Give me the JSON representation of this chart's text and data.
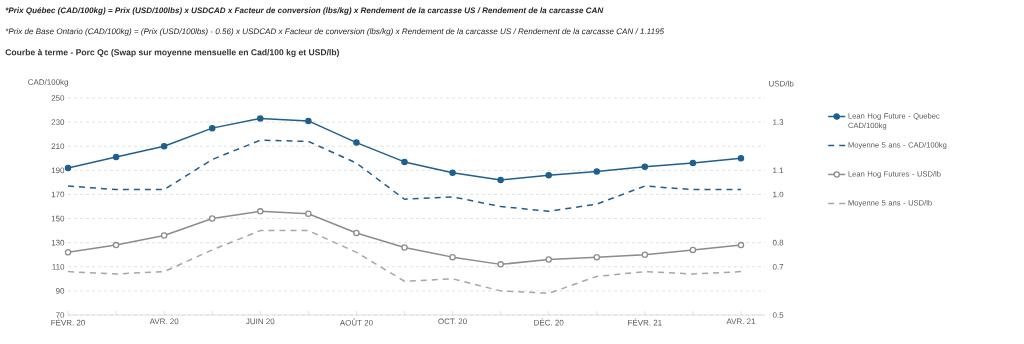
{
  "chart_data": {
    "type": "line",
    "title": "Courbe à terme - Porc Qc (Swap sur moyenne mensuelle en Cad/100 kg et USD/lb)",
    "annotations": [
      "*Prix Québec (CAD/100kg) = Prix (USD/100lbs) x USDCAD x Facteur de conversion (lbs/kg) x Rendement de la carcasse US / Rendement de la carcasse CAN",
      "*Prix de Base Ontario (CAD/100kg) = (Prix (USD/100lbs) - 0.56) x USDCAD x Facteur de conversion (lbs/kg) x Rendement de la carcasse US / Rendement de la carcasse CAN / 1.1195"
    ],
    "categories": [
      "FÉVR. 20",
      null,
      "AVR. 20",
      null,
      "JUIN 20",
      null,
      "AOÛT 20",
      null,
      "OCT. 20",
      null,
      "DÉC. 20",
      null,
      "FÉVR. 21",
      null,
      "AVR. 21"
    ],
    "ylabel": "CAD/100kg",
    "y2label": "USD/lb",
    "ylim": [
      70,
      250
    ],
    "yticks": [
      70,
      90,
      110,
      130,
      150,
      170,
      190,
      210,
      230,
      250
    ],
    "y2lim": [
      0.5,
      1.4
    ],
    "y2ticks": [
      0.5,
      0.7,
      0.8,
      {
        "value": 1.0,
        "label": "1.0"
      },
      1.1,
      1.3
    ],
    "grid": "y",
    "legend": "right",
    "series": [
      {
        "name": "Lean Hog Future - Quebec CAD/100kg",
        "color": "#1f5f8e",
        "marker": "circle",
        "line_style": "solid",
        "values": [
          192,
          201,
          210,
          225,
          233,
          231,
          213,
          197,
          188,
          182,
          186,
          189,
          193,
          196,
          200
        ]
      },
      {
        "name": "Moyenne 5 ans - CAD/100kg",
        "color": "#1f5f8e",
        "marker": "none",
        "line_style": "dashed",
        "values": [
          177,
          174,
          174,
          199,
          215,
          214,
          196,
          166,
          168,
          160,
          156,
          162,
          177,
          174,
          174
        ]
      },
      {
        "name": "Lean Hog Futures - USD/lb",
        "color": "#8c8c8c",
        "marker": "circle",
        "line_style": "solid",
        "axis": "y2",
        "values": [
          0.76,
          0.79,
          0.83,
          0.9,
          0.93,
          0.92,
          0.84,
          0.78,
          0.74,
          0.71,
          0.73,
          0.74,
          0.75,
          0.77,
          0.79
        ]
      },
      {
        "name": "Moyenne 5 ans - USD/lb",
        "color": "#a6a6a6",
        "marker": "none",
        "line_style": "dashed",
        "axis": "y2",
        "values": [
          0.68,
          0.67,
          0.68,
          0.77,
          0.85,
          0.85,
          0.76,
          0.64,
          0.65,
          0.6,
          0.59,
          0.66,
          0.68,
          0.67,
          0.68
        ]
      }
    ]
  }
}
